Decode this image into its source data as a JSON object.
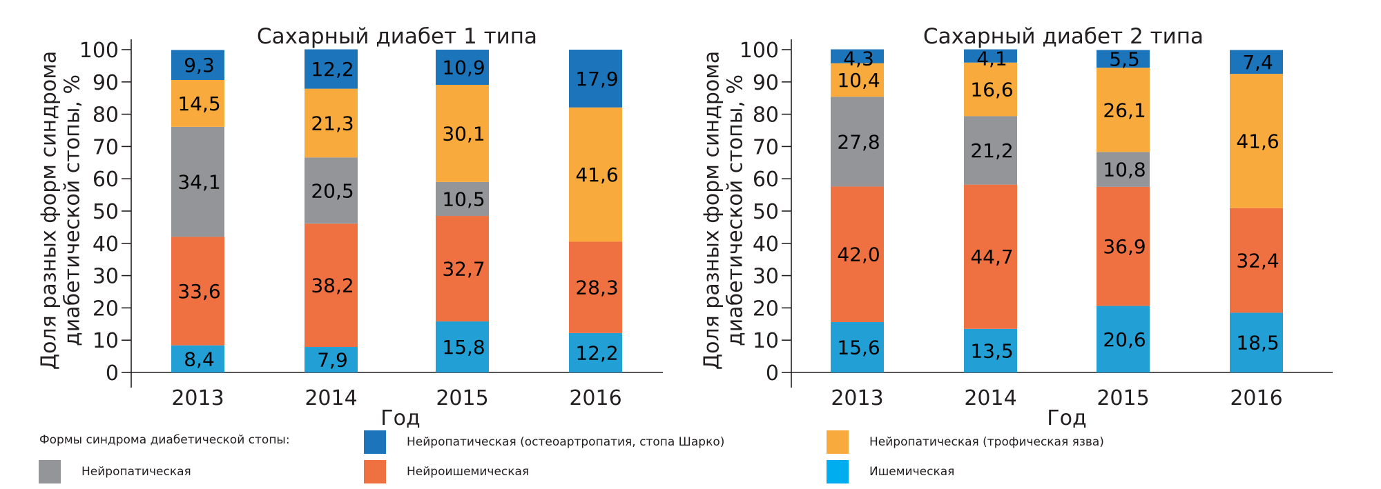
{
  "legend": {
    "title": "Формы синдрома диабетической стопы:",
    "items": [
      {
        "key": "neuro_charcot",
        "label": "Нейропатическая (остеоартропатия, стопа Шарко)",
        "color": "#1c75ba"
      },
      {
        "key": "neuro_ulcer",
        "label": "Нейропатическая (трофическая язва)",
        "color": "#f8ab3c"
      },
      {
        "key": "neuropathic",
        "label": "Нейропатическая",
        "color": "#939598"
      },
      {
        "key": "neuroischemic",
        "label": "Нейроишемическая",
        "color": "#ef7142"
      },
      {
        "key": "ischemic",
        "label": "Ишемическая",
        "color": "#22a0d6"
      }
    ]
  },
  "chart_data": [
    {
      "type": "bar",
      "stacked": true,
      "title": "Сахарный диабет 1 типа",
      "xlabel": "Год",
      "ylabel": [
        "Доля разных форм синдрома",
        "диабетической стопы, %"
      ],
      "ylim": [
        0,
        100
      ],
      "yticks": [
        0,
        10,
        20,
        30,
        40,
        50,
        60,
        70,
        80,
        90,
        100
      ],
      "categories": [
        "2013",
        "2014",
        "2015",
        "2016"
      ],
      "series": [
        {
          "name": "Ишемическая",
          "key": "ischemic",
          "values": [
            8.4,
            7.9,
            15.8,
            12.2
          ],
          "labels": [
            "8,4",
            "7,9",
            "15,8",
            "12,2"
          ]
        },
        {
          "name": "Нейроишемическая",
          "key": "neuroischemic",
          "values": [
            33.6,
            38.2,
            32.7,
            28.3
          ],
          "labels": [
            "33,6",
            "38,2",
            "32,7",
            "28,3"
          ]
        },
        {
          "name": "Нейропатическая",
          "key": "neuropathic",
          "values": [
            34.1,
            20.5,
            10.5,
            0
          ],
          "labels": [
            "34,1",
            "20,5",
            "10,5",
            ""
          ]
        },
        {
          "name": "Нейропатическая (трофическая язва)",
          "key": "neuro_ulcer",
          "values": [
            14.5,
            21.3,
            30.1,
            41.6
          ],
          "labels": [
            "14,5",
            "21,3",
            "30,1",
            "41,6"
          ]
        },
        {
          "name": "Нейропатическая (остеоартропатия, стопа Шарко)",
          "key": "neuro_charcot",
          "values": [
            9.3,
            12.2,
            10.9,
            17.9
          ],
          "labels": [
            "9,3",
            "12,2",
            "10,9",
            "17,9"
          ]
        }
      ]
    },
    {
      "type": "bar",
      "stacked": true,
      "title": "Сахарный диабет 2 типа",
      "xlabel": "Год",
      "ylabel": [
        "Доля разных форм синдрома",
        "диабетической стопы, %"
      ],
      "ylim": [
        0,
        100
      ],
      "yticks": [
        0,
        10,
        20,
        30,
        40,
        50,
        60,
        70,
        80,
        90,
        100
      ],
      "categories": [
        "2013",
        "2014",
        "2015",
        "2016"
      ],
      "series": [
        {
          "name": "Ишемическая",
          "key": "ischemic",
          "values": [
            15.6,
            13.5,
            20.6,
            18.5
          ],
          "labels": [
            "15,6",
            "13,5",
            "20,6",
            "18,5"
          ]
        },
        {
          "name": "Нейроишемическая",
          "key": "neuroischemic",
          "values": [
            42.0,
            44.7,
            36.9,
            32.4
          ],
          "labels": [
            "42,0",
            "44,7",
            "36,9",
            "32,4"
          ]
        },
        {
          "name": "Нейропатическая",
          "key": "neuropathic",
          "values": [
            27.8,
            21.2,
            10.8,
            0
          ],
          "labels": [
            "27,8",
            "21,2",
            "10,8",
            ""
          ]
        },
        {
          "name": "Нейропатическая (трофическая язва)",
          "key": "neuro_ulcer",
          "values": [
            10.4,
            16.6,
            26.1,
            41.6
          ],
          "labels": [
            "10,4",
            "16,6",
            "26,1",
            "41,6"
          ]
        },
        {
          "name": "Нейропатическая (остеоартропатия, стопа Шарко)",
          "key": "neuro_charcot",
          "values": [
            4.3,
            4.1,
            5.5,
            7.4
          ],
          "labels": [
            "4,3",
            "4,1",
            "5,5",
            "7,4"
          ]
        }
      ]
    }
  ]
}
